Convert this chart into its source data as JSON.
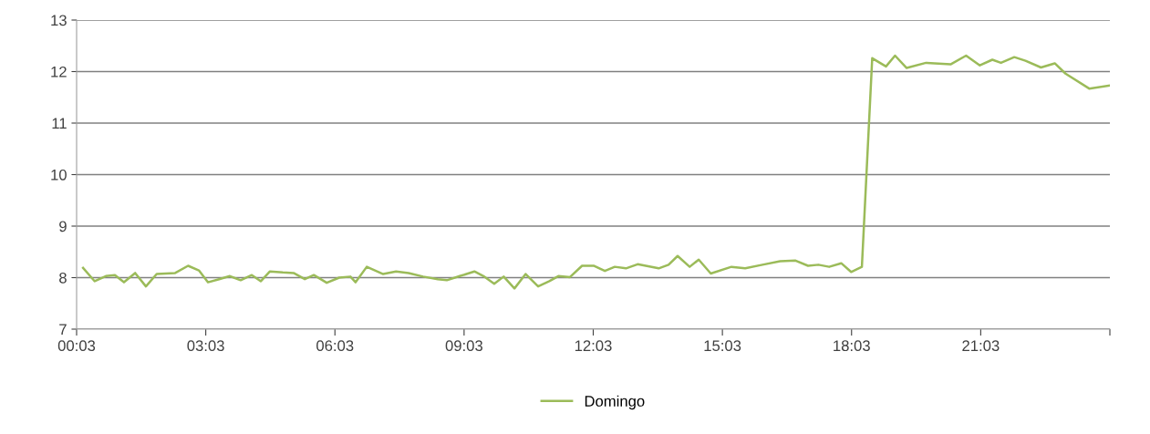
{
  "chart_data": {
    "type": "line",
    "legend": "bottom",
    "grid": "y",
    "marker": "none",
    "line_style": "solid",
    "xlim": [
      0.05,
      24.05
    ],
    "ylim": [
      7,
      13
    ],
    "yticks": [
      7,
      8,
      9,
      10,
      11,
      12,
      13
    ],
    "xticks": [
      {
        "value": 0.05,
        "label": "00:03"
      },
      {
        "value": 3.05,
        "label": "03:03"
      },
      {
        "value": 6.05,
        "label": "06:03"
      },
      {
        "value": 9.05,
        "label": "09:03"
      },
      {
        "value": 12.05,
        "label": "12:03"
      },
      {
        "value": 15.05,
        "label": "15:03"
      },
      {
        "value": 18.05,
        "label": "18:03"
      },
      {
        "value": 21.05,
        "label": "21:03"
      },
      {
        "value": 24.05,
        "label": null
      }
    ],
    "x": [
      0.2,
      0.47,
      0.73,
      0.94,
      1.15,
      1.41,
      1.66,
      1.91,
      2.34,
      2.64,
      2.89,
      3.1,
      3.36,
      3.61,
      3.86,
      4.12,
      4.33,
      4.54,
      4.84,
      5.09,
      5.35,
      5.56,
      5.86,
      6.15,
      6.41,
      6.53,
      6.79,
      7.17,
      7.47,
      7.76,
      8.1,
      8.44,
      8.65,
      8.95,
      9.29,
      9.5,
      9.75,
      9.97,
      10.22,
      10.48,
      10.77,
      11.03,
      11.24,
      11.51,
      11.79,
      12.07,
      12.32,
      12.55,
      12.81,
      13.08,
      13.57,
      13.8,
      14.01,
      14.29,
      14.5,
      14.78,
      15.26,
      15.58,
      15.98,
      16.39,
      16.75,
      17.04,
      17.28,
      17.53,
      17.81,
      18.04,
      18.29,
      18.53,
      18.85,
      19.06,
      19.33,
      19.78,
      20.35,
      20.71,
      21.03,
      21.32,
      21.52,
      21.83,
      22.09,
      22.45,
      22.77,
      23.02,
      23.57,
      24.05
    ],
    "series": [
      {
        "name": "Domingo",
        "color": "#9bbb59",
        "values": [
          8.19,
          7.93,
          8.03,
          8.05,
          7.91,
          8.09,
          7.83,
          8.07,
          8.09,
          8.23,
          8.14,
          7.91,
          7.97,
          8.03,
          7.95,
          8.05,
          7.93,
          8.12,
          8.1,
          8.09,
          7.97,
          8.05,
          7.9,
          8.0,
          8.02,
          7.91,
          8.21,
          8.07,
          8.12,
          8.09,
          8.02,
          7.97,
          7.95,
          8.03,
          8.12,
          8.03,
          7.88,
          8.02,
          7.79,
          8.07,
          7.83,
          7.93,
          8.03,
          8.01,
          8.23,
          8.23,
          8.13,
          8.21,
          8.18,
          8.26,
          8.18,
          8.25,
          8.42,
          8.21,
          8.35,
          8.08,
          8.21,
          8.18,
          8.25,
          8.32,
          8.33,
          8.23,
          8.25,
          8.21,
          8.28,
          8.11,
          8.21,
          12.26,
          12.1,
          12.31,
          12.07,
          12.17,
          12.14,
          12.31,
          12.12,
          12.23,
          12.17,
          12.28,
          12.21,
          12.08,
          12.16,
          11.96,
          11.67,
          11.73
        ]
      }
    ]
  }
}
